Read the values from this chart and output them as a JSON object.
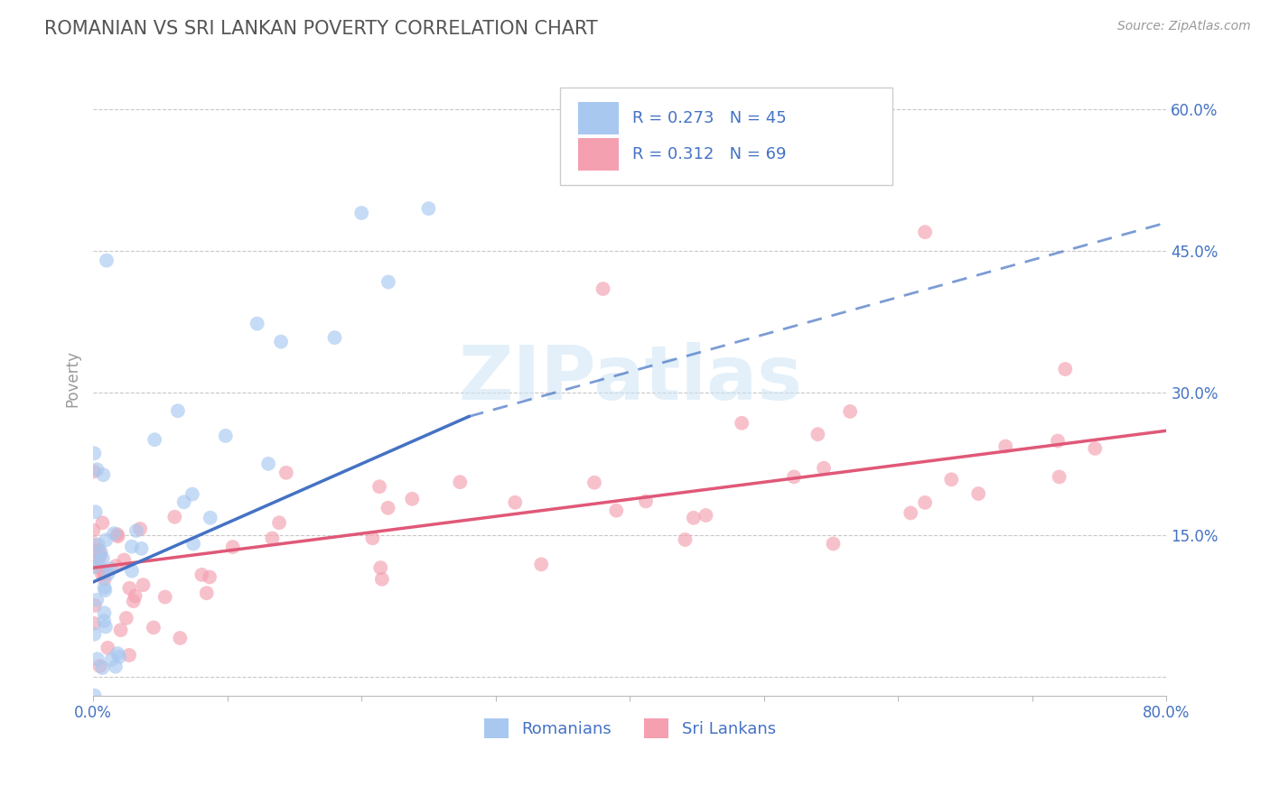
{
  "title": "ROMANIAN VS SRI LANKAN POVERTY CORRELATION CHART",
  "source": "Source: ZipAtlas.com",
  "ylabel": "Poverty",
  "xlim": [
    0.0,
    0.8
  ],
  "ylim": [
    -0.02,
    0.65
  ],
  "xticks": [
    0.0,
    0.1,
    0.2,
    0.3,
    0.4,
    0.5,
    0.6,
    0.7,
    0.8
  ],
  "xticklabels": [
    "0.0%",
    "",
    "",
    "",
    "",
    "",
    "",
    "",
    "80.0%"
  ],
  "yticks": [
    0.0,
    0.15,
    0.3,
    0.45,
    0.6
  ],
  "yticklabels": [
    "",
    "15.0%",
    "30.0%",
    "45.0%",
    "60.0%"
  ],
  "romanian_color": "#a8c8f0",
  "srilanka_color": "#f4a0b0",
  "trend_romanian_color": "#4472c4",
  "trend_srilanka_color": "#e05878",
  "background_color": "#ffffff",
  "grid_color": "#c8c8c8",
  "title_color": "#555555",
  "axis_label_color": "#4472c4",
  "legend_r_romanian": "0.273",
  "legend_n_romanian": "45",
  "legend_r_srilanka": "0.312",
  "legend_n_srilanka": "69",
  "watermark": "ZIPatlas",
  "rom_trend_x0": 0.0,
  "rom_trend_x1": 0.28,
  "rom_trend_y0": 0.1,
  "rom_trend_y1": 0.275,
  "rom_trend_dash_x0": 0.28,
  "rom_trend_dash_x1": 0.8,
  "rom_trend_dash_y0": 0.275,
  "rom_trend_dash_y1": 0.48,
  "sri_trend_x0": 0.0,
  "sri_trend_x1": 0.8,
  "sri_trend_y0": 0.115,
  "sri_trend_y1": 0.26
}
